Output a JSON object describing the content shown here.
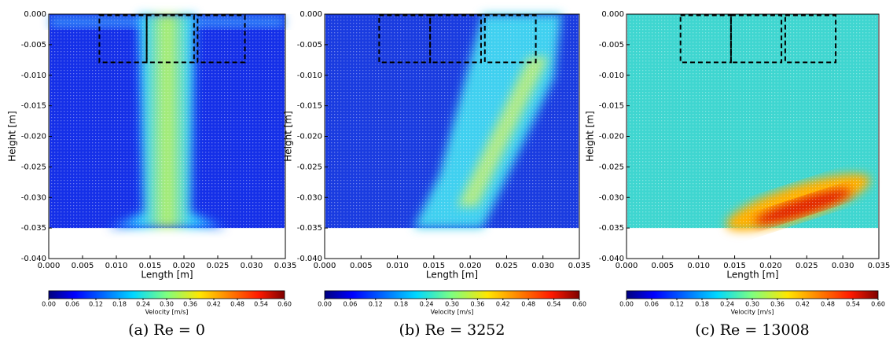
{
  "chart_data": [
    {
      "type": "quiver",
      "xlabel": "Length [m]",
      "ylabel": "Height [m]",
      "xlim": [
        0,
        0.035
      ],
      "ylim": [
        -0.04,
        0
      ],
      "xticks": [
        {
          "value": 0,
          "label": "0.000"
        },
        {
          "value": 0.005,
          "label": "0.005"
        },
        {
          "value": 0.01,
          "label": "0.010"
        },
        {
          "value": 0.015,
          "label": "0.015"
        },
        {
          "value": 0.02,
          "label": "0.020"
        },
        {
          "value": 0.025,
          "label": "0.025"
        },
        {
          "value": 0.03,
          "label": "0.030"
        },
        {
          "value": 0.035,
          "label": "0.035"
        }
      ],
      "yticks": [
        {
          "value": 0,
          "label": "0.000"
        },
        {
          "value": -0.005,
          "label": "-0.005"
        },
        {
          "value": -0.01,
          "label": "-0.010"
        },
        {
          "value": -0.015,
          "label": "-0.015"
        },
        {
          "value": -0.02,
          "label": "-0.020"
        },
        {
          "value": -0.025,
          "label": "-0.025"
        },
        {
          "value": -0.03,
          "label": "-0.030"
        },
        {
          "value": -0.035,
          "label": "-0.035"
        },
        {
          "value": -0.04,
          "label": "-0.040"
        }
      ],
      "colorbar": {
        "label": "Velocity [m/s]",
        "lim": [
          0,
          0.6
        ],
        "ticks": [
          {
            "value": 0,
            "label": "0.00"
          },
          {
            "value": 0.06,
            "label": "0.06"
          },
          {
            "value": 0.12,
            "label": "0.12"
          },
          {
            "value": 0.18,
            "label": "0.18"
          },
          {
            "value": 0.24,
            "label": "0.24"
          },
          {
            "value": 0.3,
            "label": "0.30"
          },
          {
            "value": 0.36,
            "label": "0.36"
          },
          {
            "value": 0.42,
            "label": "0.42"
          },
          {
            "value": 0.48,
            "label": "0.48"
          },
          {
            "value": 0.54,
            "label": "0.54"
          },
          {
            "value": 0.6,
            "label": "0.60"
          }
        ]
      },
      "caption": "(a) Re = 0"
    },
    {
      "type": "quiver",
      "xlabel": "Length [m]",
      "ylabel": "Height [m]",
      "xlim": [
        0,
        0.035
      ],
      "ylim": [
        -0.04,
        0
      ],
      "xticks": [
        {
          "value": 0,
          "label": "0.000"
        },
        {
          "value": 0.005,
          "label": "0.005"
        },
        {
          "value": 0.01,
          "label": "0.010"
        },
        {
          "value": 0.015,
          "label": "0.015"
        },
        {
          "value": 0.02,
          "label": "0.020"
        },
        {
          "value": 0.025,
          "label": "0.025"
        },
        {
          "value": 0.03,
          "label": "0.030"
        },
        {
          "value": 0.035,
          "label": "0.035"
        }
      ],
      "yticks": [
        {
          "value": 0,
          "label": "0.000"
        },
        {
          "value": -0.005,
          "label": "-0.005"
        },
        {
          "value": -0.01,
          "label": "-0.010"
        },
        {
          "value": -0.015,
          "label": "-0.015"
        },
        {
          "value": -0.02,
          "label": "-0.020"
        },
        {
          "value": -0.025,
          "label": "-0.025"
        },
        {
          "value": -0.03,
          "label": "-0.030"
        },
        {
          "value": -0.035,
          "label": "-0.035"
        },
        {
          "value": -0.04,
          "label": "-0.040"
        }
      ],
      "colorbar": {
        "label": "Velocity [m/s]",
        "lim": [
          0,
          0.6
        ],
        "ticks": [
          {
            "value": 0,
            "label": "0.00"
          },
          {
            "value": 0.06,
            "label": "0.06"
          },
          {
            "value": 0.12,
            "label": "0.12"
          },
          {
            "value": 0.18,
            "label": "0.18"
          },
          {
            "value": 0.24,
            "label": "0.24"
          },
          {
            "value": 0.3,
            "label": "0.30"
          },
          {
            "value": 0.36,
            "label": "0.36"
          },
          {
            "value": 0.42,
            "label": "0.42"
          },
          {
            "value": 0.48,
            "label": "0.48"
          },
          {
            "value": 0.54,
            "label": "0.54"
          },
          {
            "value": 0.6,
            "label": "0.60"
          }
        ]
      },
      "caption": "(b) Re = 3252"
    },
    {
      "type": "quiver",
      "xlabel": "Length [m]",
      "ylabel": "Height [m]",
      "xlim": [
        0,
        0.035
      ],
      "ylim": [
        -0.04,
        0
      ],
      "xticks": [
        {
          "value": 0,
          "label": "0.000"
        },
        {
          "value": 0.005,
          "label": "0.005"
        },
        {
          "value": 0.01,
          "label": "0.010"
        },
        {
          "value": 0.015,
          "label": "0.015"
        },
        {
          "value": 0.02,
          "label": "0.020"
        },
        {
          "value": 0.025,
          "label": "0.025"
        },
        {
          "value": 0.03,
          "label": "0.030"
        },
        {
          "value": 0.035,
          "label": "0.035"
        }
      ],
      "yticks": [
        {
          "value": 0,
          "label": "0.000"
        },
        {
          "value": -0.005,
          "label": "-0.005"
        },
        {
          "value": -0.01,
          "label": "-0.010"
        },
        {
          "value": -0.015,
          "label": "-0.015"
        },
        {
          "value": -0.02,
          "label": "-0.020"
        },
        {
          "value": -0.025,
          "label": "-0.025"
        },
        {
          "value": -0.03,
          "label": "-0.030"
        },
        {
          "value": -0.035,
          "label": "-0.035"
        },
        {
          "value": -0.04,
          "label": "-0.040"
        }
      ],
      "colorbar": {
        "label": "Velocity [m/s]",
        "lim": [
          0,
          0.6
        ],
        "ticks": [
          {
            "value": 0,
            "label": "0.00"
          },
          {
            "value": 0.06,
            "label": "0.06"
          },
          {
            "value": 0.12,
            "label": "0.12"
          },
          {
            "value": 0.18,
            "label": "0.18"
          },
          {
            "value": 0.24,
            "label": "0.24"
          },
          {
            "value": 0.3,
            "label": "0.30"
          },
          {
            "value": 0.36,
            "label": "0.36"
          },
          {
            "value": 0.42,
            "label": "0.42"
          },
          {
            "value": 0.48,
            "label": "0.48"
          },
          {
            "value": 0.54,
            "label": "0.54"
          },
          {
            "value": 0.6,
            "label": "0.60"
          }
        ]
      },
      "caption": "(c) Re = 13008"
    }
  ]
}
